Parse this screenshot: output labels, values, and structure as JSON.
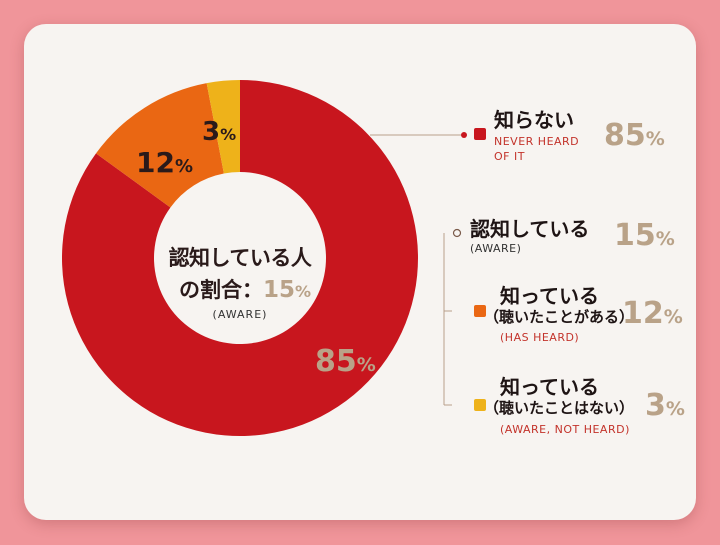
{
  "chart_data": {
    "type": "donut",
    "slices": [
      {
        "label": "知らない",
        "label_en": "NEVER HEARD OF IT",
        "value": 85,
        "display": "85",
        "color": "#c8161e"
      },
      {
        "label": "知っている",
        "sublabel": "（聴いたことがある）",
        "label_en": "(HAS HEARD)",
        "value": 12,
        "display": "12",
        "color": "#ea6713"
      },
      {
        "label": "知っている",
        "sublabel": "（聴いたことはない）",
        "label_en": "(AWARE, NOT HEARD)",
        "value": 3,
        "display": "3",
        "color": "#eeb21a"
      }
    ],
    "center": {
      "line1": "認知している人",
      "line2_prefix": "の割合：",
      "value": "15",
      "unit": "%",
      "en": "(AWARE)"
    },
    "aware_group": {
      "label": "認知している",
      "label_en": "(AWARE)",
      "value": "15"
    },
    "unit": "%"
  }
}
